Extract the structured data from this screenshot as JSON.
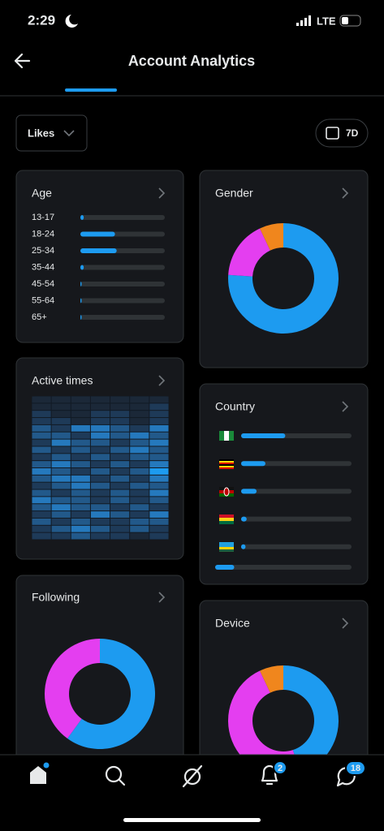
{
  "status_bar": {
    "time": "2:29",
    "network": "LTE"
  },
  "header": {
    "title": "Account Analytics"
  },
  "filters": {
    "metric": "Likes",
    "range": "7D"
  },
  "age": {
    "title": "Age",
    "categories": [
      "13-17",
      "18-24",
      "25-34",
      "35-44",
      "45-54",
      "55-64",
      "65+"
    ],
    "values": [
      4,
      41,
      43,
      4,
      1,
      1,
      1
    ]
  },
  "gender": {
    "title": "Gender",
    "values": [
      76,
      17,
      7
    ],
    "colors": [
      "#1d9bf0",
      "#e43ef0",
      "#f0861d"
    ]
  },
  "active_times": {
    "title": "Active times",
    "values": [
      [
        0,
        0,
        0,
        0,
        0,
        0,
        0
      ],
      [
        0,
        0,
        0,
        0,
        0,
        0,
        1
      ],
      [
        1,
        0,
        0,
        1,
        1,
        0,
        1
      ],
      [
        1,
        1,
        0,
        1,
        1,
        0,
        1
      ],
      [
        2,
        1,
        3,
        3,
        2,
        1,
        3
      ],
      [
        2,
        2,
        1,
        3,
        2,
        3,
        2
      ],
      [
        1,
        3,
        2,
        2,
        1,
        2,
        3
      ],
      [
        2,
        1,
        2,
        1,
        2,
        3,
        2
      ],
      [
        1,
        2,
        1,
        2,
        1,
        2,
        2
      ],
      [
        2,
        3,
        2,
        1,
        2,
        1,
        3
      ],
      [
        3,
        2,
        1,
        2,
        1,
        2,
        4
      ],
      [
        2,
        3,
        3,
        1,
        2,
        1,
        3
      ],
      [
        1,
        2,
        3,
        2,
        1,
        2,
        2
      ],
      [
        2,
        1,
        2,
        1,
        2,
        1,
        3
      ],
      [
        3,
        2,
        2,
        1,
        2,
        1,
        2
      ],
      [
        2,
        3,
        2,
        2,
        1,
        2,
        1
      ],
      [
        1,
        2,
        1,
        3,
        2,
        1,
        3
      ],
      [
        2,
        1,
        2,
        1,
        1,
        2,
        2
      ],
      [
        1,
        2,
        3,
        2,
        1,
        2,
        1
      ],
      [
        1,
        1,
        2,
        1,
        1,
        0,
        1
      ]
    ],
    "colors": [
      "#1b2838",
      "#1e3a58",
      "#22598a",
      "#2579bd",
      "#1d9bf0"
    ]
  },
  "country": {
    "title": "Country",
    "values": [
      40,
      22,
      14,
      5,
      4,
      14
    ]
  },
  "following": {
    "title": "Following",
    "values": [
      60,
      40
    ],
    "colors": [
      "#1d9bf0",
      "#e43ef0"
    ]
  },
  "device": {
    "title": "Device",
    "values": [
      45,
      48,
      7
    ],
    "colors": [
      "#1d9bf0",
      "#e43ef0",
      "#f0861d"
    ]
  },
  "nav": {
    "notifications": 2,
    "messages": 18
  }
}
